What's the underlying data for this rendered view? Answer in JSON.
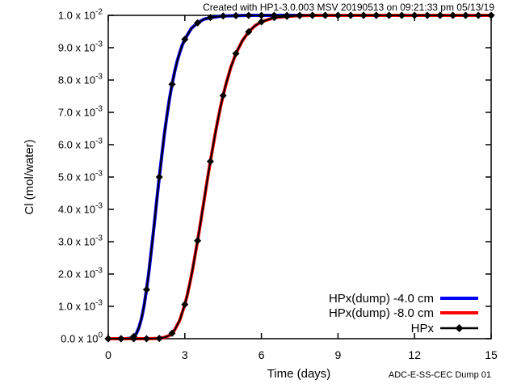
{
  "page": {
    "background": "#ffffff"
  },
  "chart_data": {
    "type": "line",
    "title": "Created with HP1-3.0.003 MSV 20190513 on 09:21:33 pm 05/13/19",
    "title_color": "#c0c0c0",
    "watermark": "ADC-E-SS-CEC Dump 01",
    "watermark_color": "#c8c8c8",
    "xlabel": "Time (days)",
    "ylabel": "Cl (mol/water)",
    "xlim": [
      0,
      15
    ],
    "ylim": [
      0,
      0.01
    ],
    "grid": false,
    "frame_color": "#000000",
    "xticks": [
      {
        "value": 0,
        "label": "0"
      },
      {
        "value": 3,
        "label": "3"
      },
      {
        "value": 6,
        "label": "6"
      },
      {
        "value": 9,
        "label": "9"
      },
      {
        "value": 12,
        "label": "12"
      },
      {
        "value": 15,
        "label": "15"
      }
    ],
    "yticks": [
      {
        "value": 0.0,
        "label": "0.0 x 10^0"
      },
      {
        "value": 0.001,
        "label": "1.0 x 10^-3"
      },
      {
        "value": 0.002,
        "label": "2.0 x 10^-3"
      },
      {
        "value": 0.003,
        "label": "3.0 x 10^-3"
      },
      {
        "value": 0.004,
        "label": "4.0 x 10^-3"
      },
      {
        "value": 0.005,
        "label": "5.0 x 10^-3"
      },
      {
        "value": 0.006,
        "label": "6.0 x 10^-3"
      },
      {
        "value": 0.007,
        "label": "7.0 x 10^-3"
      },
      {
        "value": 0.008,
        "label": "8.0 x 10^-3"
      },
      {
        "value": 0.009,
        "label": "9.0 x 10^-3"
      },
      {
        "value": 0.01,
        "label": "1.0 x 10^-2"
      }
    ],
    "legend": [
      {
        "label": "HPx(dump) -4.0 cm",
        "color": "#0000ff",
        "style": "line"
      },
      {
        "label": "HPx(dump) -8.0 cm",
        "color": "#ff0000",
        "style": "line"
      },
      {
        "label": "HPx",
        "color": "#000000",
        "style": "line-diamond"
      }
    ],
    "legend_position": "inside-bottom-right",
    "series": [
      {
        "name": "HPx(dump) -4.0 cm",
        "color": "#0000ff",
        "line_width": 4,
        "points": [
          [
            0,
            0
          ],
          [
            0.7,
            0
          ],
          [
            0.9,
            2e-05
          ],
          [
            1.0,
            7e-05
          ],
          [
            1.1,
            0.00016
          ],
          [
            1.2,
            0.00034
          ],
          [
            1.3,
            0.00062
          ],
          [
            1.4,
            0.001
          ],
          [
            1.5,
            0.00152
          ],
          [
            1.6,
            0.00213
          ],
          [
            1.7,
            0.00281
          ],
          [
            1.8,
            0.00353
          ],
          [
            1.9,
            0.00427
          ],
          [
            2.0,
            0.005
          ],
          [
            2.1,
            0.00569
          ],
          [
            2.2,
            0.00633
          ],
          [
            2.3,
            0.00691
          ],
          [
            2.4,
            0.00742
          ],
          [
            2.5,
            0.00787
          ],
          [
            2.6,
            0.00826
          ],
          [
            2.7,
            0.00858
          ],
          [
            2.8,
            0.00885
          ],
          [
            2.9,
            0.00908
          ],
          [
            3.0,
            0.00926
          ],
          [
            3.25,
            0.00959
          ],
          [
            3.5,
            0.00977
          ],
          [
            3.75,
            0.00988
          ],
          [
            4.0,
            0.00993
          ],
          [
            4.5,
            0.00998
          ],
          [
            5.0,
            0.00999
          ],
          [
            5.5,
            0.01
          ],
          [
            15,
            0.01
          ]
        ]
      },
      {
        "name": "HPx(dump) -8.0 cm",
        "color": "#ff0000",
        "line_width": 4,
        "points": [
          [
            0,
            0
          ],
          [
            1.5,
            0
          ],
          [
            2.0,
            1e-05
          ],
          [
            2.2,
            4e-05
          ],
          [
            2.4,
            0.0001
          ],
          [
            2.6,
            0.00027
          ],
          [
            2.8,
            0.00057
          ],
          [
            3.0,
            0.00106
          ],
          [
            3.1,
            0.00137
          ],
          [
            3.2,
            0.00173
          ],
          [
            3.3,
            0.00213
          ],
          [
            3.4,
            0.00257
          ],
          [
            3.5,
            0.00303
          ],
          [
            3.6,
            0.00352
          ],
          [
            3.7,
            0.00401
          ],
          [
            3.8,
            0.00451
          ],
          [
            3.9,
            0.005
          ],
          [
            4.0,
            0.00548
          ],
          [
            4.1,
            0.00594
          ],
          [
            4.2,
            0.00638
          ],
          [
            4.3,
            0.00679
          ],
          [
            4.4,
            0.00717
          ],
          [
            4.5,
            0.00752
          ],
          [
            4.6,
            0.00784
          ],
          [
            4.8,
            0.00839
          ],
          [
            5.0,
            0.00882
          ],
          [
            5.25,
            0.00921
          ],
          [
            5.5,
            0.00949
          ],
          [
            5.75,
            0.00968
          ],
          [
            6.0,
            0.0098
          ],
          [
            6.5,
            0.00993
          ],
          [
            7.0,
            0.00997
          ],
          [
            7.5,
            0.00999
          ],
          [
            8.0,
            0.01
          ],
          [
            15,
            0.01
          ]
        ]
      },
      {
        "name": "HPx",
        "color": "#000000",
        "line_width": 2,
        "marker": "diamond",
        "marker_size": 9,
        "overlay_of": [
          0,
          1
        ],
        "marker_points": [
          [
            [
              0,
              0
            ],
            [
              0.5,
              0
            ],
            [
              1,
              7e-05
            ],
            [
              1.5,
              0.00152
            ],
            [
              2,
              0.005
            ],
            [
              2.5,
              0.00787
            ],
            [
              3,
              0.00926
            ],
            [
              3.5,
              0.00977
            ],
            [
              4,
              0.00993
            ],
            [
              4.5,
              0.00998
            ],
            [
              5,
              0.00999
            ],
            [
              5.5,
              0.01
            ],
            [
              6,
              0.01
            ],
            [
              6.5,
              0.01
            ],
            [
              7,
              0.01
            ],
            [
              7.5,
              0.01
            ],
            [
              8,
              0.01
            ],
            [
              8.5,
              0.01
            ],
            [
              9,
              0.01
            ],
            [
              9.5,
              0.01
            ],
            [
              10,
              0.01
            ],
            [
              10.5,
              0.01
            ],
            [
              11,
              0.01
            ],
            [
              11.5,
              0.01
            ],
            [
              12,
              0.01
            ],
            [
              12.5,
              0.01
            ],
            [
              13,
              0.01
            ],
            [
              13.5,
              0.01
            ],
            [
              14,
              0.01
            ],
            [
              14.5,
              0.01
            ],
            [
              15,
              0.01
            ]
          ],
          [
            [
              0,
              0
            ],
            [
              0.5,
              0
            ],
            [
              1,
              0
            ],
            [
              1.5,
              0
            ],
            [
              2,
              1e-05
            ],
            [
              2.5,
              0.00017
            ],
            [
              3,
              0.00106
            ],
            [
              3.5,
              0.00303
            ],
            [
              4,
              0.00548
            ],
            [
              4.5,
              0.00752
            ],
            [
              5,
              0.00882
            ],
            [
              5.5,
              0.00949
            ],
            [
              6,
              0.0098
            ],
            [
              6.5,
              0.00993
            ],
            [
              7,
              0.00997
            ],
            [
              7.5,
              0.00999
            ],
            [
              8,
              0.01
            ],
            [
              8.5,
              0.01
            ],
            [
              9,
              0.01
            ],
            [
              9.5,
              0.01
            ],
            [
              10,
              0.01
            ],
            [
              10.5,
              0.01
            ],
            [
              11,
              0.01
            ],
            [
              11.5,
              0.01
            ],
            [
              12,
              0.01
            ],
            [
              12.5,
              0.01
            ],
            [
              13,
              0.01
            ],
            [
              13.5,
              0.01
            ],
            [
              14,
              0.01
            ],
            [
              14.5,
              0.01
            ],
            [
              15,
              0.01
            ]
          ]
        ]
      }
    ]
  }
}
